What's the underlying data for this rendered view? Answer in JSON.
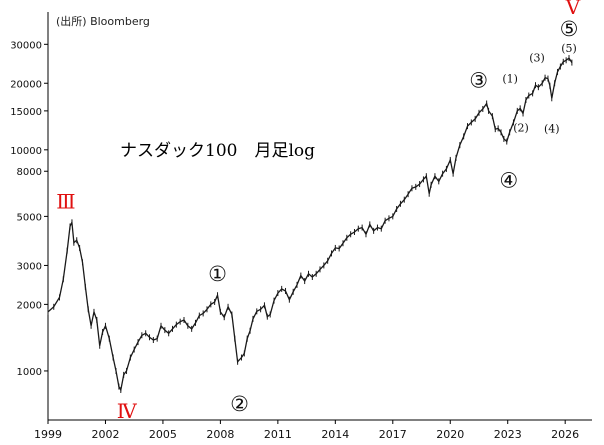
{
  "source_label": "(出所) Bloomberg",
  "chart_data": {
    "type": "line",
    "title": "ナスダック100　月足log",
    "scale": "log",
    "xlabel": "",
    "ylabel": "",
    "grid": false,
    "xlim": [
      1999.0,
      2027.4
    ],
    "ylim": [
      600,
      42000
    ],
    "y_ticks": [
      {
        "value": 1000,
        "label": "1000"
      },
      {
        "value": 2000,
        "label": "2000"
      },
      {
        "value": 3000,
        "label": "3000"
      },
      {
        "value": 5000,
        "label": "5000"
      },
      {
        "value": 8000,
        "label": "8000"
      },
      {
        "value": 10000,
        "label": "10000"
      },
      {
        "value": 15000,
        "label": "15000"
      },
      {
        "value": 20000,
        "label": "20000"
      },
      {
        "value": 30000,
        "label": "30000"
      }
    ],
    "x_ticks": [
      {
        "value": 1999,
        "label": "1999"
      },
      {
        "value": 2002,
        "label": "2002"
      },
      {
        "value": 2005,
        "label": "2005"
      },
      {
        "value": 2008,
        "label": "2008"
      },
      {
        "value": 2011,
        "label": "2011"
      },
      {
        "value": 2014,
        "label": "2014"
      },
      {
        "value": 2017,
        "label": "2017"
      },
      {
        "value": 2020,
        "label": "2020"
      },
      {
        "value": 2023,
        "label": "2023"
      },
      {
        "value": 2026,
        "label": "2026"
      }
    ],
    "series": [
      {
        "color": "#1a1a1a",
        "points": [
          [
            1999.0,
            1850
          ],
          [
            1999.3,
            1950
          ],
          [
            1999.6,
            2150
          ],
          [
            1999.8,
            2600
          ],
          [
            2000.0,
            3500
          ],
          [
            2000.15,
            4500
          ],
          [
            2000.25,
            4700
          ],
          [
            2000.35,
            3800
          ],
          [
            2000.5,
            3900
          ],
          [
            2000.65,
            3600
          ],
          [
            2000.8,
            3100
          ],
          [
            2000.95,
            2400
          ],
          [
            2001.1,
            1900
          ],
          [
            2001.25,
            1600
          ],
          [
            2001.4,
            1850
          ],
          [
            2001.55,
            1700
          ],
          [
            2001.7,
            1300
          ],
          [
            2001.85,
            1500
          ],
          [
            2002.0,
            1600
          ],
          [
            2002.2,
            1400
          ],
          [
            2002.4,
            1150
          ],
          [
            2002.55,
            1000
          ],
          [
            2002.7,
            850
          ],
          [
            2002.8,
            820
          ],
          [
            2002.95,
            960
          ],
          [
            2003.1,
            1000
          ],
          [
            2003.3,
            1150
          ],
          [
            2003.5,
            1250
          ],
          [
            2003.7,
            1350
          ],
          [
            2003.9,
            1450
          ],
          [
            2004.1,
            1480
          ],
          [
            2004.3,
            1420
          ],
          [
            2004.5,
            1380
          ],
          [
            2004.7,
            1400
          ],
          [
            2004.9,
            1600
          ],
          [
            2005.1,
            1530
          ],
          [
            2005.3,
            1480
          ],
          [
            2005.5,
            1550
          ],
          [
            2005.7,
            1620
          ],
          [
            2005.9,
            1670
          ],
          [
            2006.1,
            1700
          ],
          [
            2006.3,
            1600
          ],
          [
            2006.5,
            1550
          ],
          [
            2006.7,
            1650
          ],
          [
            2006.9,
            1780
          ],
          [
            2007.1,
            1820
          ],
          [
            2007.3,
            1900
          ],
          [
            2007.5,
            2000
          ],
          [
            2007.7,
            2050
          ],
          [
            2007.85,
            2200
          ],
          [
            2008.0,
            1850
          ],
          [
            2008.2,
            1750
          ],
          [
            2008.4,
            1950
          ],
          [
            2008.6,
            1800
          ],
          [
            2008.75,
            1400
          ],
          [
            2008.9,
            1100
          ],
          [
            2009.1,
            1150
          ],
          [
            2009.25,
            1200
          ],
          [
            2009.4,
            1400
          ],
          [
            2009.55,
            1520
          ],
          [
            2009.7,
            1720
          ],
          [
            2009.9,
            1860
          ],
          [
            2010.1,
            1900
          ],
          [
            2010.3,
            1980
          ],
          [
            2010.45,
            1760
          ],
          [
            2010.6,
            1800
          ],
          [
            2010.8,
            2080
          ],
          [
            2011.0,
            2250
          ],
          [
            2011.2,
            2350
          ],
          [
            2011.4,
            2300
          ],
          [
            2011.6,
            2100
          ],
          [
            2011.8,
            2280
          ],
          [
            2012.0,
            2450
          ],
          [
            2012.2,
            2700
          ],
          [
            2012.4,
            2550
          ],
          [
            2012.6,
            2750
          ],
          [
            2012.8,
            2660
          ],
          [
            2013.0,
            2750
          ],
          [
            2013.2,
            2880
          ],
          [
            2013.4,
            3000
          ],
          [
            2013.6,
            3150
          ],
          [
            2013.8,
            3400
          ],
          [
            2014.0,
            3600
          ],
          [
            2014.2,
            3580
          ],
          [
            2014.4,
            3780
          ],
          [
            2014.6,
            4000
          ],
          [
            2014.8,
            4150
          ],
          [
            2015.0,
            4250
          ],
          [
            2015.2,
            4400
          ],
          [
            2015.4,
            4450
          ],
          [
            2015.6,
            4150
          ],
          [
            2015.8,
            4600
          ],
          [
            2016.0,
            4300
          ],
          [
            2016.2,
            4450
          ],
          [
            2016.4,
            4400
          ],
          [
            2016.6,
            4780
          ],
          [
            2016.8,
            4900
          ],
          [
            2017.0,
            5000
          ],
          [
            2017.2,
            5400
          ],
          [
            2017.4,
            5700
          ],
          [
            2017.6,
            5950
          ],
          [
            2017.8,
            6300
          ],
          [
            2018.0,
            6700
          ],
          [
            2018.2,
            6800
          ],
          [
            2018.4,
            7000
          ],
          [
            2018.6,
            7350
          ],
          [
            2018.75,
            7600
          ],
          [
            2018.9,
            6330
          ],
          [
            2019.0,
            6950
          ],
          [
            2019.2,
            7600
          ],
          [
            2019.4,
            7200
          ],
          [
            2019.6,
            7800
          ],
          [
            2019.8,
            8200
          ],
          [
            2020.0,
            9000
          ],
          [
            2020.15,
            7800
          ],
          [
            2020.3,
            9200
          ],
          [
            2020.5,
            10500
          ],
          [
            2020.7,
            11500
          ],
          [
            2020.9,
            12800
          ],
          [
            2021.1,
            13300
          ],
          [
            2021.3,
            13800
          ],
          [
            2021.5,
            14700
          ],
          [
            2021.7,
            15300
          ],
          [
            2021.9,
            16200
          ],
          [
            2022.0,
            15000
          ],
          [
            2022.2,
            14200
          ],
          [
            2022.35,
            12400
          ],
          [
            2022.5,
            12500
          ],
          [
            2022.65,
            12000
          ],
          [
            2022.8,
            11200
          ],
          [
            2022.95,
            10900
          ],
          [
            2023.1,
            12000
          ],
          [
            2023.3,
            13300
          ],
          [
            2023.5,
            15000
          ],
          [
            2023.65,
            15400
          ],
          [
            2023.8,
            14600
          ],
          [
            2023.95,
            16800
          ],
          [
            2024.1,
            17600
          ],
          [
            2024.3,
            18000
          ],
          [
            2024.45,
            19600
          ],
          [
            2024.6,
            19200
          ],
          [
            2024.8,
            20000
          ],
          [
            2024.95,
            21200
          ],
          [
            2025.1,
            21000
          ],
          [
            2025.2,
            19500
          ],
          [
            2025.3,
            17100
          ],
          [
            2025.45,
            20000
          ],
          [
            2025.6,
            22500
          ],
          [
            2025.75,
            23800
          ],
          [
            2025.9,
            25000
          ],
          [
            2026.05,
            25400
          ],
          [
            2026.2,
            26000
          ],
          [
            2026.35,
            24800
          ]
        ]
      }
    ],
    "annotations": [
      {
        "text": "Ⅲ",
        "x": 2000.25,
        "y": 4700,
        "style": "roman"
      },
      {
        "text": "Ⅳ",
        "x": 2002.8,
        "y": 820,
        "style": "roman"
      },
      {
        "text": "Ⅴ",
        "x": 2026.2,
        "y": 26000,
        "style": "roman"
      },
      {
        "text": "①",
        "x": 2007.85,
        "y": 2200,
        "style": "wave"
      },
      {
        "text": "②",
        "x": 2009.0,
        "y": 1000,
        "style": "wave"
      },
      {
        "text": "③",
        "x": 2021.9,
        "y": 16200,
        "style": "wave"
      },
      {
        "text": "④",
        "x": 2022.95,
        "y": 10900,
        "style": "wave"
      },
      {
        "text": "⑤",
        "x": 2026.2,
        "y": 26000,
        "style": "wave"
      },
      {
        "text": "(1)",
        "x": 2023.65,
        "y": 15400,
        "style": "subwave"
      },
      {
        "text": "(2)",
        "x": 2023.8,
        "y": 14600,
        "style": "subwave"
      },
      {
        "text": "(3)",
        "x": 2024.95,
        "y": 21200,
        "style": "subwave"
      },
      {
        "text": "(4)",
        "x": 2025.3,
        "y": 17100,
        "style": "subwave"
      },
      {
        "text": "(5)",
        "x": 2026.2,
        "y": 26000,
        "style": "subwave"
      }
    ]
  }
}
